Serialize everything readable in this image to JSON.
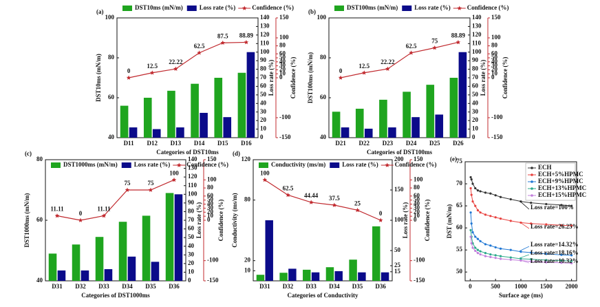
{
  "chart_data": [
    {
      "type": "bar_line",
      "title": "(a)",
      "xlabel": "Categories of DST10ms",
      "ylabel": "DST10ms (mN/m)",
      "y2label": "Loss rate (%)",
      "y3label": "Confidence (%)",
      "categories": [
        "D11",
        "D12",
        "D13",
        "D14",
        "D15",
        "D16"
      ],
      "series": [
        {
          "name": "DST10ms (mN/m)",
          "color": "#1fa51f",
          "values": [
            56,
            60,
            63.5,
            67,
            70,
            72.5
          ],
          "axis": "y"
        },
        {
          "name": "Loss rate (%)",
          "color": "#0b0b8a",
          "values": [
            12,
            10,
            12,
            29,
            24,
            100
          ],
          "axis": "y2"
        },
        {
          "name": "Confidence (%)",
          "color": "#c0282d",
          "values": [
            0,
            12.5,
            22.22,
            62.5,
            87.5,
            88.89
          ],
          "axis": "y3"
        }
      ],
      "ylim": [
        40,
        100
      ],
      "yticks": [
        40,
        60,
        80,
        100
      ],
      "y2lim": [
        0,
        140
      ],
      "y2ticks": [
        0,
        10,
        20,
        30,
        40,
        50,
        60,
        70,
        80,
        90,
        100,
        110,
        120,
        130,
        140
      ],
      "y3lim": [
        -150,
        150
      ],
      "y3ticks": [
        -150,
        -100,
        0,
        10,
        20,
        30,
        40,
        50,
        60,
        80,
        100,
        150
      ]
    },
    {
      "type": "bar_line",
      "title": "(b)",
      "xlabel": "Categories of DST100ms",
      "ylabel": "DST100ms (mN/m)",
      "y2label": "Loss rate (%)",
      "y3label": "Confidence (%)",
      "categories": [
        "D21",
        "D22",
        "D23",
        "D24",
        "D25",
        "D26"
      ],
      "series": [
        {
          "name": "DST100ms (mN/m)",
          "color": "#1fa51f",
          "values": [
            53,
            54.5,
            59,
            63,
            66.5,
            70
          ],
          "axis": "y"
        },
        {
          "name": "Loss rate (%)",
          "color": "#0b0b8a",
          "values": [
            12,
            10.5,
            12,
            24,
            27,
            100
          ],
          "axis": "y2"
        },
        {
          "name": "Confidence (%)",
          "color": "#c0282d",
          "values": [
            0,
            12.5,
            22.22,
            62.5,
            75,
            88.89
          ],
          "axis": "y3"
        }
      ],
      "ylim": [
        40,
        100
      ],
      "yticks": [
        40,
        60,
        80,
        100
      ],
      "y2lim": [
        0,
        140
      ],
      "y2ticks": [
        0,
        10,
        20,
        30,
        40,
        50,
        60,
        70,
        80,
        90,
        100,
        110,
        120,
        130,
        140
      ],
      "y3lim": [
        -150,
        150
      ],
      "y3ticks": [
        -150,
        -100,
        0,
        10,
        20,
        30,
        40,
        50,
        60,
        80,
        100,
        150
      ]
    },
    {
      "type": "bar_line",
      "title": "(c)",
      "xlabel": "Categories of DST1000ms",
      "ylabel": "DST1000ms (mN/m)",
      "y2label": "Loss rate (%)",
      "y3label": "Confidence (%)",
      "categories": [
        "D31",
        "D32",
        "D33",
        "D34",
        "D35",
        "D36"
      ],
      "series": [
        {
          "name": "DST1000ms (mN/m)",
          "color": "#1fa51f",
          "values": [
            49,
            52,
            54.5,
            59.5,
            61.5,
            69
          ],
          "axis": "y"
        },
        {
          "name": "Loss rate (%)",
          "color": "#0b0b8a",
          "values": [
            12,
            12,
            13.5,
            28,
            22,
            100
          ],
          "axis": "y2"
        },
        {
          "name": "Confidence (%)",
          "color": "#c0282d",
          "values": [
            11.11,
            0,
            11.11,
            75,
            75,
            100
          ],
          "axis": "y3"
        }
      ],
      "ylim": [
        40,
        80
      ],
      "yticks": [
        40,
        60,
        80
      ],
      "y2lim": [
        0,
        140
      ],
      "y2ticks": [
        0,
        10,
        20,
        30,
        40,
        50,
        60,
        70,
        80,
        90,
        100,
        110,
        120,
        130,
        140
      ],
      "y3lim": [
        -150,
        150
      ],
      "y3ticks": [
        -150,
        -100,
        0,
        10,
        20,
        30,
        40,
        50,
        60,
        80,
        100,
        150
      ]
    },
    {
      "type": "bar_line",
      "title": "(d)",
      "xlabel": "Categories of Conductivity",
      "ylabel": "Conductivity (ms/m)",
      "y2label": "Loss rate (%)",
      "y3label": "Confidence (%)",
      "categories": [
        "D31",
        "D32",
        "D33",
        "D34",
        "D35",
        "D36"
      ],
      "series": [
        {
          "name": "Conductivity (ms/m)",
          "color": "#1fa51f",
          "values": [
            6,
            8,
            11,
            13.5,
            21,
            54
          ],
          "axis": "y"
        },
        {
          "name": "Loss rate (%)",
          "color": "#0b0b8a",
          "values": [
            100,
            20,
            14,
            16,
            14,
            14
          ],
          "axis": "y2"
        },
        {
          "name": "Confidence (%)",
          "color": "#c0282d",
          "values": [
            100,
            62.5,
            44.44,
            37.5,
            25,
            0
          ],
          "axis": "y3"
        }
      ],
      "ylim": [
        0,
        120
      ],
      "yticks": [
        10,
        20,
        80,
        120
      ],
      "y2lim": [
        0,
        200
      ],
      "y2ticks": [
        15,
        25,
        50,
        100,
        150,
        200
      ],
      "y3lim": [
        -150,
        150
      ],
      "y3ticks": [
        -150,
        -100,
        0,
        10,
        20,
        30,
        40,
        50,
        60,
        80,
        100,
        150
      ]
    },
    {
      "type": "line",
      "title": "(e)",
      "xlabel": "Surface age (ms)",
      "ylabel": "DST (mN/m)",
      "x": [
        10,
        25,
        50,
        100,
        150,
        200,
        300,
        400,
        500,
        600,
        800,
        1000,
        1200,
        1500,
        1800,
        2000
      ],
      "series": [
        {
          "name": "ECH",
          "color": "#333333",
          "values": [
            71.5,
            71,
            70,
            69,
            68.5,
            68.3,
            68,
            67.8,
            67.4,
            67,
            66.5,
            66,
            65.7,
            65.4,
            65.2,
            65
          ]
        },
        {
          "name": "ECH+5%HPMC",
          "color": "#e8423f",
          "values": [
            69,
            67.5,
            66,
            65,
            64,
            63.5,
            63,
            62.7,
            62.4,
            62.1,
            61.6,
            61.2,
            61,
            60.8,
            60.6,
            60.5
          ]
        },
        {
          "name": "ECH+9%HPMC",
          "color": "#1f77d4",
          "values": [
            63.5,
            61,
            59,
            58,
            57.5,
            57,
            56.3,
            56,
            55.6,
            55.3,
            55,
            54.6,
            54.4,
            54.1,
            53.9,
            53.8
          ]
        },
        {
          "name": "ECH+13%HPMC",
          "color": "#2aa88a",
          "values": [
            59.5,
            58,
            56.5,
            55.5,
            55,
            54.7,
            54.3,
            54,
            53.8,
            53.6,
            53.3,
            53,
            52.9,
            52.7,
            52.6,
            52.5
          ]
        },
        {
          "name": "ECH+15%HPMC",
          "color": "#c27fdc",
          "values": [
            58,
            56.5,
            55.5,
            54.8,
            54.3,
            54,
            53.6,
            53.4,
            53.2,
            53,
            52.8,
            52.6,
            52.4,
            52.2,
            52.1,
            52
          ]
        }
      ],
      "annotations": [
        "Loss rate=100%",
        "Loss rate=26.25%",
        "Loss rate=14.32%",
        "Loss rate=18.16%",
        "Loss rate=10.32%"
      ],
      "xlim": [
        -100,
        2100
      ],
      "xticks": [
        0,
        500,
        1000,
        1500,
        2000
      ],
      "ylim": [
        48,
        75
      ],
      "yticks": [
        50,
        55,
        60,
        65,
        70,
        75
      ],
      "legend": "upper right"
    }
  ]
}
